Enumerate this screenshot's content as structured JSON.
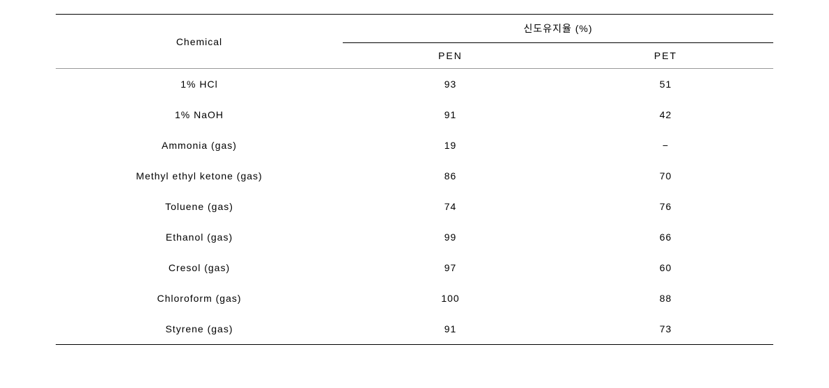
{
  "table": {
    "type": "table",
    "background_color": "#ffffff",
    "text_color": "#000000",
    "border_color": "#000000",
    "inner_border_color": "#999999",
    "font_size": 14,
    "letter_spacing": 1,
    "row_padding_y": 14,
    "header_padding_y": 10,
    "col_widths_pct": [
      40,
      30,
      30
    ],
    "columns": {
      "chemical_label": "Chemical",
      "group_label": "신도유지율 (%)",
      "sub_columns": [
        "PEN",
        "PET"
      ]
    },
    "rows": [
      {
        "chemical": "1% HCl",
        "pen": "93",
        "pet": "51"
      },
      {
        "chemical": "1% NaOH",
        "pen": "91",
        "pet": "42"
      },
      {
        "chemical": "Ammonia (gas)",
        "pen": "19",
        "pet": "−"
      },
      {
        "chemical": "Methyl ethyl ketone (gas)",
        "pen": "86",
        "pet": "70"
      },
      {
        "chemical": "Toluene (gas)",
        "pen": "74",
        "pet": "76"
      },
      {
        "chemical": "Ethanol (gas)",
        "pen": "99",
        "pet": "66"
      },
      {
        "chemical": "Cresol (gas)",
        "pen": "97",
        "pet": "60"
      },
      {
        "chemical": "Chloroform (gas)",
        "pen": "100",
        "pet": "88"
      },
      {
        "chemical": "Styrene (gas)",
        "pen": "91",
        "pet": "73"
      }
    ]
  }
}
